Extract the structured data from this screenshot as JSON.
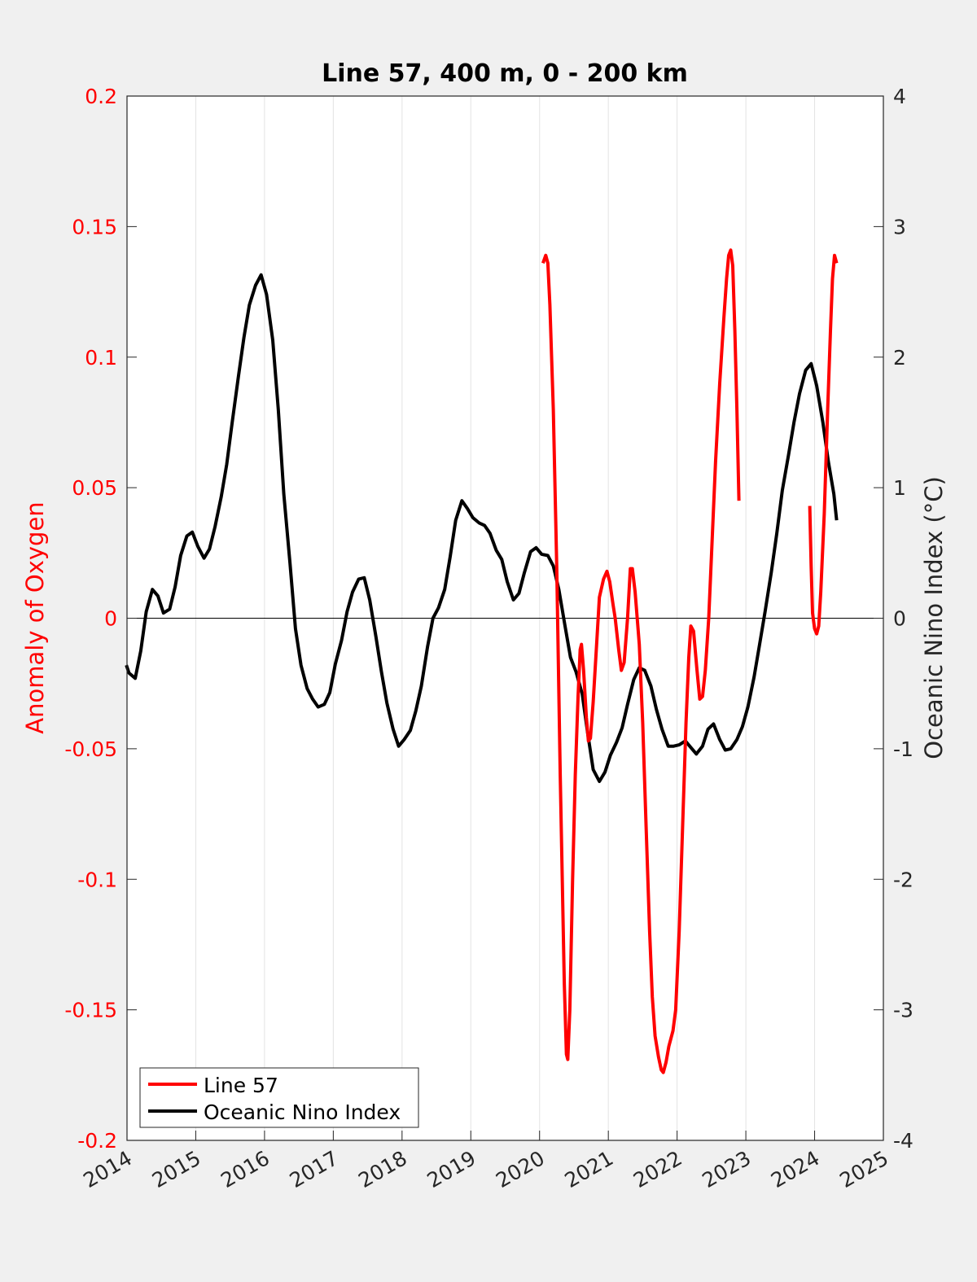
{
  "chart_data": {
    "type": "line",
    "title": "Line 57, 400 m, 0 - 200 km",
    "xlabel": "",
    "ylabel_left": "Anomaly of Oxygen",
    "ylabel_right": "Oceanic Nino Index (°C)",
    "xlim": [
      2014,
      2025
    ],
    "ylim_left": [
      -0.2,
      0.2
    ],
    "ylim_right": [
      -4,
      4
    ],
    "x_ticks": [
      "2014",
      "2015",
      "2016",
      "2017",
      "2018",
      "2019",
      "2020",
      "2021",
      "2022",
      "2023",
      "2024",
      "2025"
    ],
    "y_ticks_left": [
      "0.2",
      "0.15",
      "0.1",
      "0.05",
      "0",
      "-0.05",
      "-0.1",
      "-0.15",
      "-0.2"
    ],
    "y_ticks_right": [
      "4",
      "3",
      "2",
      "1",
      "0",
      "-1",
      "-2",
      "-3",
      "-4"
    ],
    "grid": "vertical",
    "zero_line": true,
    "legend_position": "bottom-left",
    "colors": {
      "left_axis": "#ff0000",
      "line57": "#ff0000",
      "oni": "#000000",
      "background": "#f0f0f0",
      "plot_bg": "#ffffff"
    },
    "series": [
      {
        "name": "Line 57",
        "axis": "left",
        "segments": [
          [
            [
              2020.05,
              0.136
            ],
            [
              2020.09,
              0.139
            ],
            [
              2020.12,
              0.136
            ],
            [
              2020.15,
              0.12
            ],
            [
              2020.2,
              0.08
            ],
            [
              2020.25,
              0.02
            ],
            [
              2020.3,
              -0.06
            ],
            [
              2020.36,
              -0.14
            ],
            [
              2020.39,
              -0.167
            ],
            [
              2020.41,
              -0.169
            ],
            [
              2020.44,
              -0.15
            ],
            [
              2020.48,
              -0.1
            ],
            [
              2020.52,
              -0.06
            ],
            [
              2020.56,
              -0.03
            ],
            [
              2020.59,
              -0.012
            ],
            [
              2020.61,
              -0.01
            ],
            [
              2020.64,
              -0.02
            ],
            [
              2020.68,
              -0.038
            ],
            [
              2020.71,
              -0.047
            ],
            [
              2020.74,
              -0.046
            ],
            [
              2020.78,
              -0.032
            ],
            [
              2020.83,
              -0.01
            ],
            [
              2020.87,
              0.008
            ],
            [
              2020.93,
              0.015
            ],
            [
              2020.98,
              0.018
            ],
            [
              2021.02,
              0.014
            ],
            [
              2021.07,
              0.005
            ],
            [
              2021.1,
              0.0
            ],
            [
              2021.15,
              -0.012
            ],
            [
              2021.19,
              -0.02
            ],
            [
              2021.23,
              -0.017
            ],
            [
              2021.28,
              0.0
            ],
            [
              2021.32,
              0.019
            ],
            [
              2021.35,
              0.019
            ],
            [
              2021.39,
              0.01
            ],
            [
              2021.45,
              -0.01
            ],
            [
              2021.5,
              -0.04
            ],
            [
              2021.55,
              -0.08
            ],
            [
              2021.6,
              -0.12
            ],
            [
              2021.64,
              -0.145
            ],
            [
              2021.68,
              -0.16
            ],
            [
              2021.73,
              -0.168
            ],
            [
              2021.77,
              -0.173
            ],
            [
              2021.8,
              -0.174
            ],
            [
              2021.84,
              -0.17
            ],
            [
              2021.88,
              -0.164
            ],
            [
              2021.94,
              -0.158
            ],
            [
              2021.98,
              -0.15
            ],
            [
              2022.03,
              -0.12
            ],
            [
              2022.08,
              -0.08
            ],
            [
              2022.13,
              -0.04
            ],
            [
              2022.17,
              -0.015
            ],
            [
              2022.2,
              -0.003
            ],
            [
              2022.24,
              -0.005
            ],
            [
              2022.29,
              -0.02
            ],
            [
              2022.33,
              -0.031
            ],
            [
              2022.37,
              -0.03
            ],
            [
              2022.41,
              -0.02
            ],
            [
              2022.46,
              0.0
            ],
            [
              2022.51,
              0.03
            ],
            [
              2022.56,
              0.06
            ],
            [
              2022.62,
              0.09
            ],
            [
              2022.68,
              0.115
            ],
            [
              2022.72,
              0.13
            ],
            [
              2022.75,
              0.139
            ],
            [
              2022.78,
              0.141
            ],
            [
              2022.81,
              0.135
            ],
            [
              2022.84,
              0.11
            ],
            [
              2022.87,
              0.08
            ],
            [
              2022.9,
              0.045
            ]
          ],
          [
            [
              2023.93,
              0.043
            ],
            [
              2023.95,
              0.02
            ],
            [
              2023.97,
              0.002
            ],
            [
              2024.0,
              -0.004
            ],
            [
              2024.03,
              -0.006
            ],
            [
              2024.06,
              -0.003
            ],
            [
              2024.09,
              0.01
            ],
            [
              2024.14,
              0.04
            ],
            [
              2024.19,
              0.08
            ],
            [
              2024.23,
              0.11
            ],
            [
              2024.26,
              0.13
            ],
            [
              2024.29,
              0.139
            ],
            [
              2024.32,
              0.136
            ]
          ]
        ]
      },
      {
        "name": "Oceanic Nino Index",
        "axis": "right",
        "segments": [
          [
            [
              2013.99,
              -0.36
            ],
            [
              2014.03,
              -0.42
            ],
            [
              2014.12,
              -0.46
            ],
            [
              2014.2,
              -0.25
            ],
            [
              2014.28,
              0.05
            ],
            [
              2014.37,
              0.22
            ],
            [
              2014.45,
              0.17
            ],
            [
              2014.53,
              0.04
            ],
            [
              2014.62,
              0.07
            ],
            [
              2014.7,
              0.24
            ],
            [
              2014.78,
              0.48
            ],
            [
              2014.87,
              0.63
            ],
            [
              2014.95,
              0.66
            ],
            [
              2015.03,
              0.55
            ],
            [
              2015.12,
              0.46
            ],
            [
              2015.2,
              0.53
            ],
            [
              2015.28,
              0.7
            ],
            [
              2015.37,
              0.93
            ],
            [
              2015.45,
              1.18
            ],
            [
              2015.53,
              1.5
            ],
            [
              2015.62,
              1.85
            ],
            [
              2015.7,
              2.15
            ],
            [
              2015.78,
              2.4
            ],
            [
              2015.87,
              2.55
            ],
            [
              2015.95,
              2.63
            ],
            [
              2016.03,
              2.48
            ],
            [
              2016.12,
              2.13
            ],
            [
              2016.2,
              1.6
            ],
            [
              2016.28,
              0.95
            ],
            [
              2016.37,
              0.42
            ],
            [
              2016.45,
              -0.08
            ],
            [
              2016.53,
              -0.36
            ],
            [
              2016.62,
              -0.54
            ],
            [
              2016.7,
              -0.62
            ],
            [
              2016.78,
              -0.68
            ],
            [
              2016.87,
              -0.66
            ],
            [
              2016.95,
              -0.57
            ],
            [
              2017.03,
              -0.35
            ],
            [
              2017.12,
              -0.17
            ],
            [
              2017.2,
              0.05
            ],
            [
              2017.28,
              0.2
            ],
            [
              2017.37,
              0.3
            ],
            [
              2017.45,
              0.31
            ],
            [
              2017.53,
              0.14
            ],
            [
              2017.62,
              -0.14
            ],
            [
              2017.7,
              -0.41
            ],
            [
              2017.78,
              -0.65
            ],
            [
              2017.87,
              -0.85
            ],
            [
              2017.95,
              -0.98
            ],
            [
              2018.03,
              -0.93
            ],
            [
              2018.12,
              -0.86
            ],
            [
              2018.2,
              -0.71
            ],
            [
              2018.28,
              -0.52
            ],
            [
              2018.37,
              -0.22
            ],
            [
              2018.45,
              0.0
            ],
            [
              2018.53,
              0.08
            ],
            [
              2018.62,
              0.22
            ],
            [
              2018.7,
              0.47
            ],
            [
              2018.78,
              0.75
            ],
            [
              2018.87,
              0.9
            ],
            [
              2018.95,
              0.84
            ],
            [
              2019.03,
              0.77
            ],
            [
              2019.12,
              0.73
            ],
            [
              2019.2,
              0.71
            ],
            [
              2019.28,
              0.65
            ],
            [
              2019.37,
              0.52
            ],
            [
              2019.45,
              0.45
            ],
            [
              2019.53,
              0.28
            ],
            [
              2019.62,
              0.14
            ],
            [
              2019.7,
              0.19
            ],
            [
              2019.78,
              0.35
            ],
            [
              2019.87,
              0.51
            ],
            [
              2019.95,
              0.54
            ],
            [
              2020.03,
              0.49
            ],
            [
              2020.12,
              0.48
            ],
            [
              2020.2,
              0.4
            ],
            [
              2020.28,
              0.22
            ],
            [
              2020.37,
              -0.06
            ],
            [
              2020.45,
              -0.3
            ],
            [
              2020.53,
              -0.41
            ],
            [
              2020.62,
              -0.58
            ],
            [
              2020.7,
              -0.88
            ],
            [
              2020.78,
              -1.16
            ],
            [
              2020.87,
              -1.25
            ],
            [
              2020.95,
              -1.18
            ],
            [
              2021.03,
              -1.05
            ],
            [
              2021.12,
              -0.95
            ],
            [
              2021.2,
              -0.84
            ],
            [
              2021.28,
              -0.66
            ],
            [
              2021.37,
              -0.47
            ],
            [
              2021.45,
              -0.38
            ],
            [
              2021.53,
              -0.4
            ],
            [
              2021.62,
              -0.52
            ],
            [
              2021.7,
              -0.7
            ],
            [
              2021.78,
              -0.85
            ],
            [
              2021.87,
              -0.98
            ],
            [
              2021.95,
              -0.98
            ],
            [
              2022.03,
              -0.97
            ],
            [
              2022.12,
              -0.94
            ],
            [
              2022.2,
              -0.99
            ],
            [
              2022.28,
              -1.04
            ],
            [
              2022.37,
              -0.98
            ],
            [
              2022.45,
              -0.85
            ],
            [
              2022.53,
              -0.81
            ],
            [
              2022.62,
              -0.93
            ],
            [
              2022.7,
              -1.01
            ],
            [
              2022.78,
              -1.0
            ],
            [
              2022.87,
              -0.93
            ],
            [
              2022.95,
              -0.83
            ],
            [
              2023.03,
              -0.68
            ],
            [
              2023.12,
              -0.45
            ],
            [
              2023.2,
              -0.2
            ],
            [
              2023.28,
              0.05
            ],
            [
              2023.37,
              0.35
            ],
            [
              2023.45,
              0.65
            ],
            [
              2023.53,
              0.98
            ],
            [
              2023.62,
              1.25
            ],
            [
              2023.7,
              1.5
            ],
            [
              2023.78,
              1.72
            ],
            [
              2023.87,
              1.9
            ],
            [
              2023.95,
              1.95
            ],
            [
              2024.03,
              1.78
            ],
            [
              2024.12,
              1.5
            ],
            [
              2024.2,
              1.2
            ],
            [
              2024.28,
              0.95
            ],
            [
              2024.32,
              0.75
            ]
          ]
        ]
      }
    ]
  }
}
